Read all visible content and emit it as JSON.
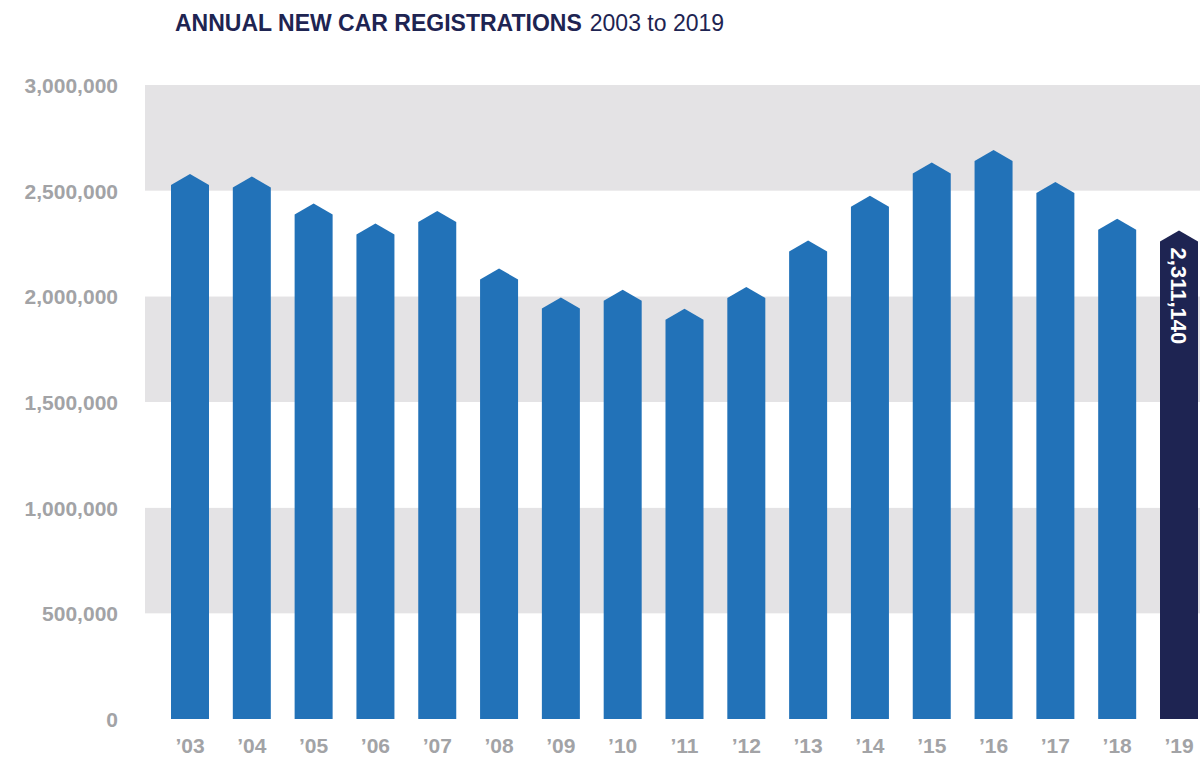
{
  "chart_data": {
    "type": "bar",
    "title": "ANNUAL NEW CAR REGISTRATIONS",
    "subtitle": "2003 to 2019",
    "categories": [
      "’03",
      "’04",
      "’05",
      "’06",
      "’07",
      "’08",
      "’09",
      "’10",
      "’11",
      "’12",
      "’13",
      "’14",
      "’15",
      "’16",
      "’17",
      "’18",
      "’19"
    ],
    "values": [
      2579050,
      2567269,
      2439717,
      2344864,
      2404007,
      2131795,
      1994999,
      2030846,
      1941253,
      2044609,
      2264737,
      2476435,
      2633503,
      2692786,
      2540617,
      2367147,
      2311140
    ],
    "value_labels": [
      null,
      null,
      null,
      null,
      null,
      null,
      null,
      null,
      null,
      null,
      null,
      null,
      null,
      null,
      null,
      null,
      "2,311,140"
    ],
    "data_labels": true,
    "colors": [
      "#2272b8",
      "#2272b8",
      "#2272b8",
      "#2272b8",
      "#2272b8",
      "#2272b8",
      "#2272b8",
      "#2272b8",
      "#2272b8",
      "#2272b8",
      "#2272b8",
      "#2272b8",
      "#2272b8",
      "#2272b8",
      "#2272b8",
      "#2272b8",
      "#1e2452"
    ],
    "ylim": [
      0,
      3000000
    ],
    "yticks": [
      0,
      {
        "value": 500000,
        "label": "500,000"
      },
      {
        "value": 1000000,
        "label": "1,000,000"
      },
      {
        "value": 1500000,
        "label": "1,500,000"
      },
      {
        "value": 2000000,
        "label": "2,000,000"
      },
      {
        "value": 2500000,
        "label": "2,500,000"
      },
      {
        "value": 3000000,
        "label": "3,000,000"
      }
    ],
    "grid": true
  }
}
